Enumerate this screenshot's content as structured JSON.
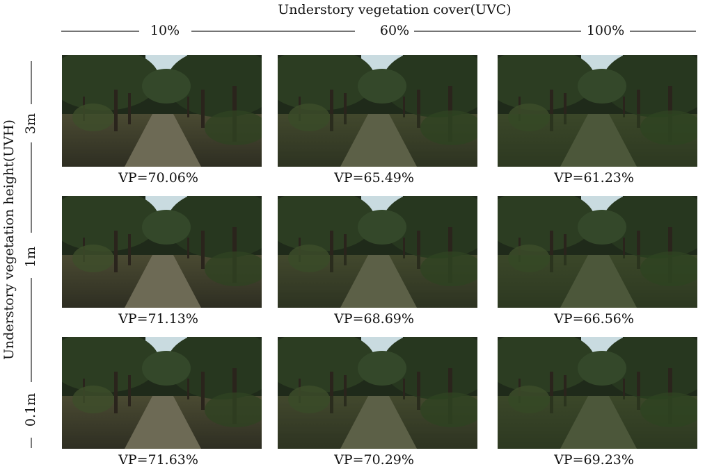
{
  "header": {
    "title": "Understory vegetation cover(UVC)",
    "columns": [
      "10%",
      "60%",
      "100%"
    ]
  },
  "side": {
    "title": "Understory vegetation height(UVH)",
    "rows": [
      "3m",
      "1m",
      "0.1m"
    ]
  },
  "grid": {
    "labels": [
      [
        "VP=70.06%",
        "VP=65.49%",
        "VP=61.23%"
      ],
      [
        "VP=71.13%",
        "VP=68.69%",
        "VP=66.56%"
      ],
      [
        "VP=71.63%",
        "VP=70.29%",
        "VP=69.23%"
      ]
    ]
  }
}
